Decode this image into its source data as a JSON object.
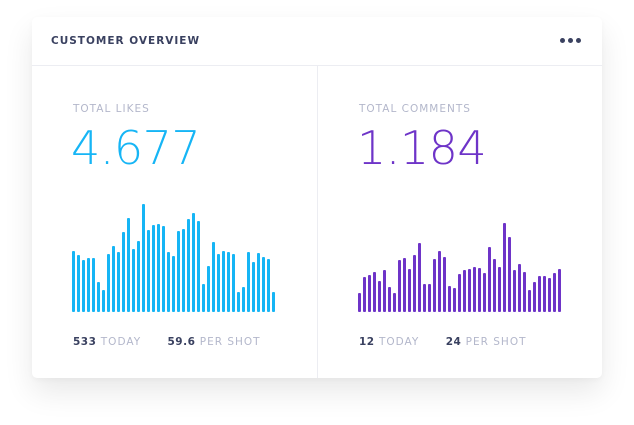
{
  "widget": {
    "title": "CUSTOMER OVERVIEW",
    "menu_icon": "more-horizontal-icon"
  },
  "panels": [
    {
      "label": "TOTAL LIKES",
      "value": "4.677",
      "color": "#16b5f5",
      "stats": [
        {
          "value": "533",
          "unit": "TODAY"
        },
        {
          "value": "59.6",
          "unit": "PER SHOT"
        }
      ],
      "bars": [
        61,
        57,
        52,
        54,
        54,
        30,
        22,
        58,
        66,
        60,
        80,
        94,
        63,
        71,
        108,
        82,
        87,
        88,
        86,
        60,
        56,
        81,
        83,
        93,
        99,
        91,
        28,
        46,
        70,
        58,
        61,
        60,
        58,
        20,
        25,
        60,
        50,
        59,
        55,
        53,
        20
      ]
    },
    {
      "label": "TOTAL COMMENTS",
      "value": "1.184",
      "color": "#6e34c8",
      "stats": [
        {
          "value": "12",
          "unit": "TODAY"
        },
        {
          "value": "24",
          "unit": "PER SHOT"
        }
      ],
      "bars": [
        19,
        35,
        37,
        40,
        31,
        42,
        25,
        19,
        52,
        54,
        43,
        57,
        69,
        28,
        28,
        53,
        61,
        55,
        26,
        24,
        38,
        42,
        43,
        45,
        44,
        39,
        65,
        53,
        45,
        89,
        75,
        42,
        48,
        40,
        22,
        30,
        36,
        36,
        34,
        39,
        43
      ]
    }
  ]
}
